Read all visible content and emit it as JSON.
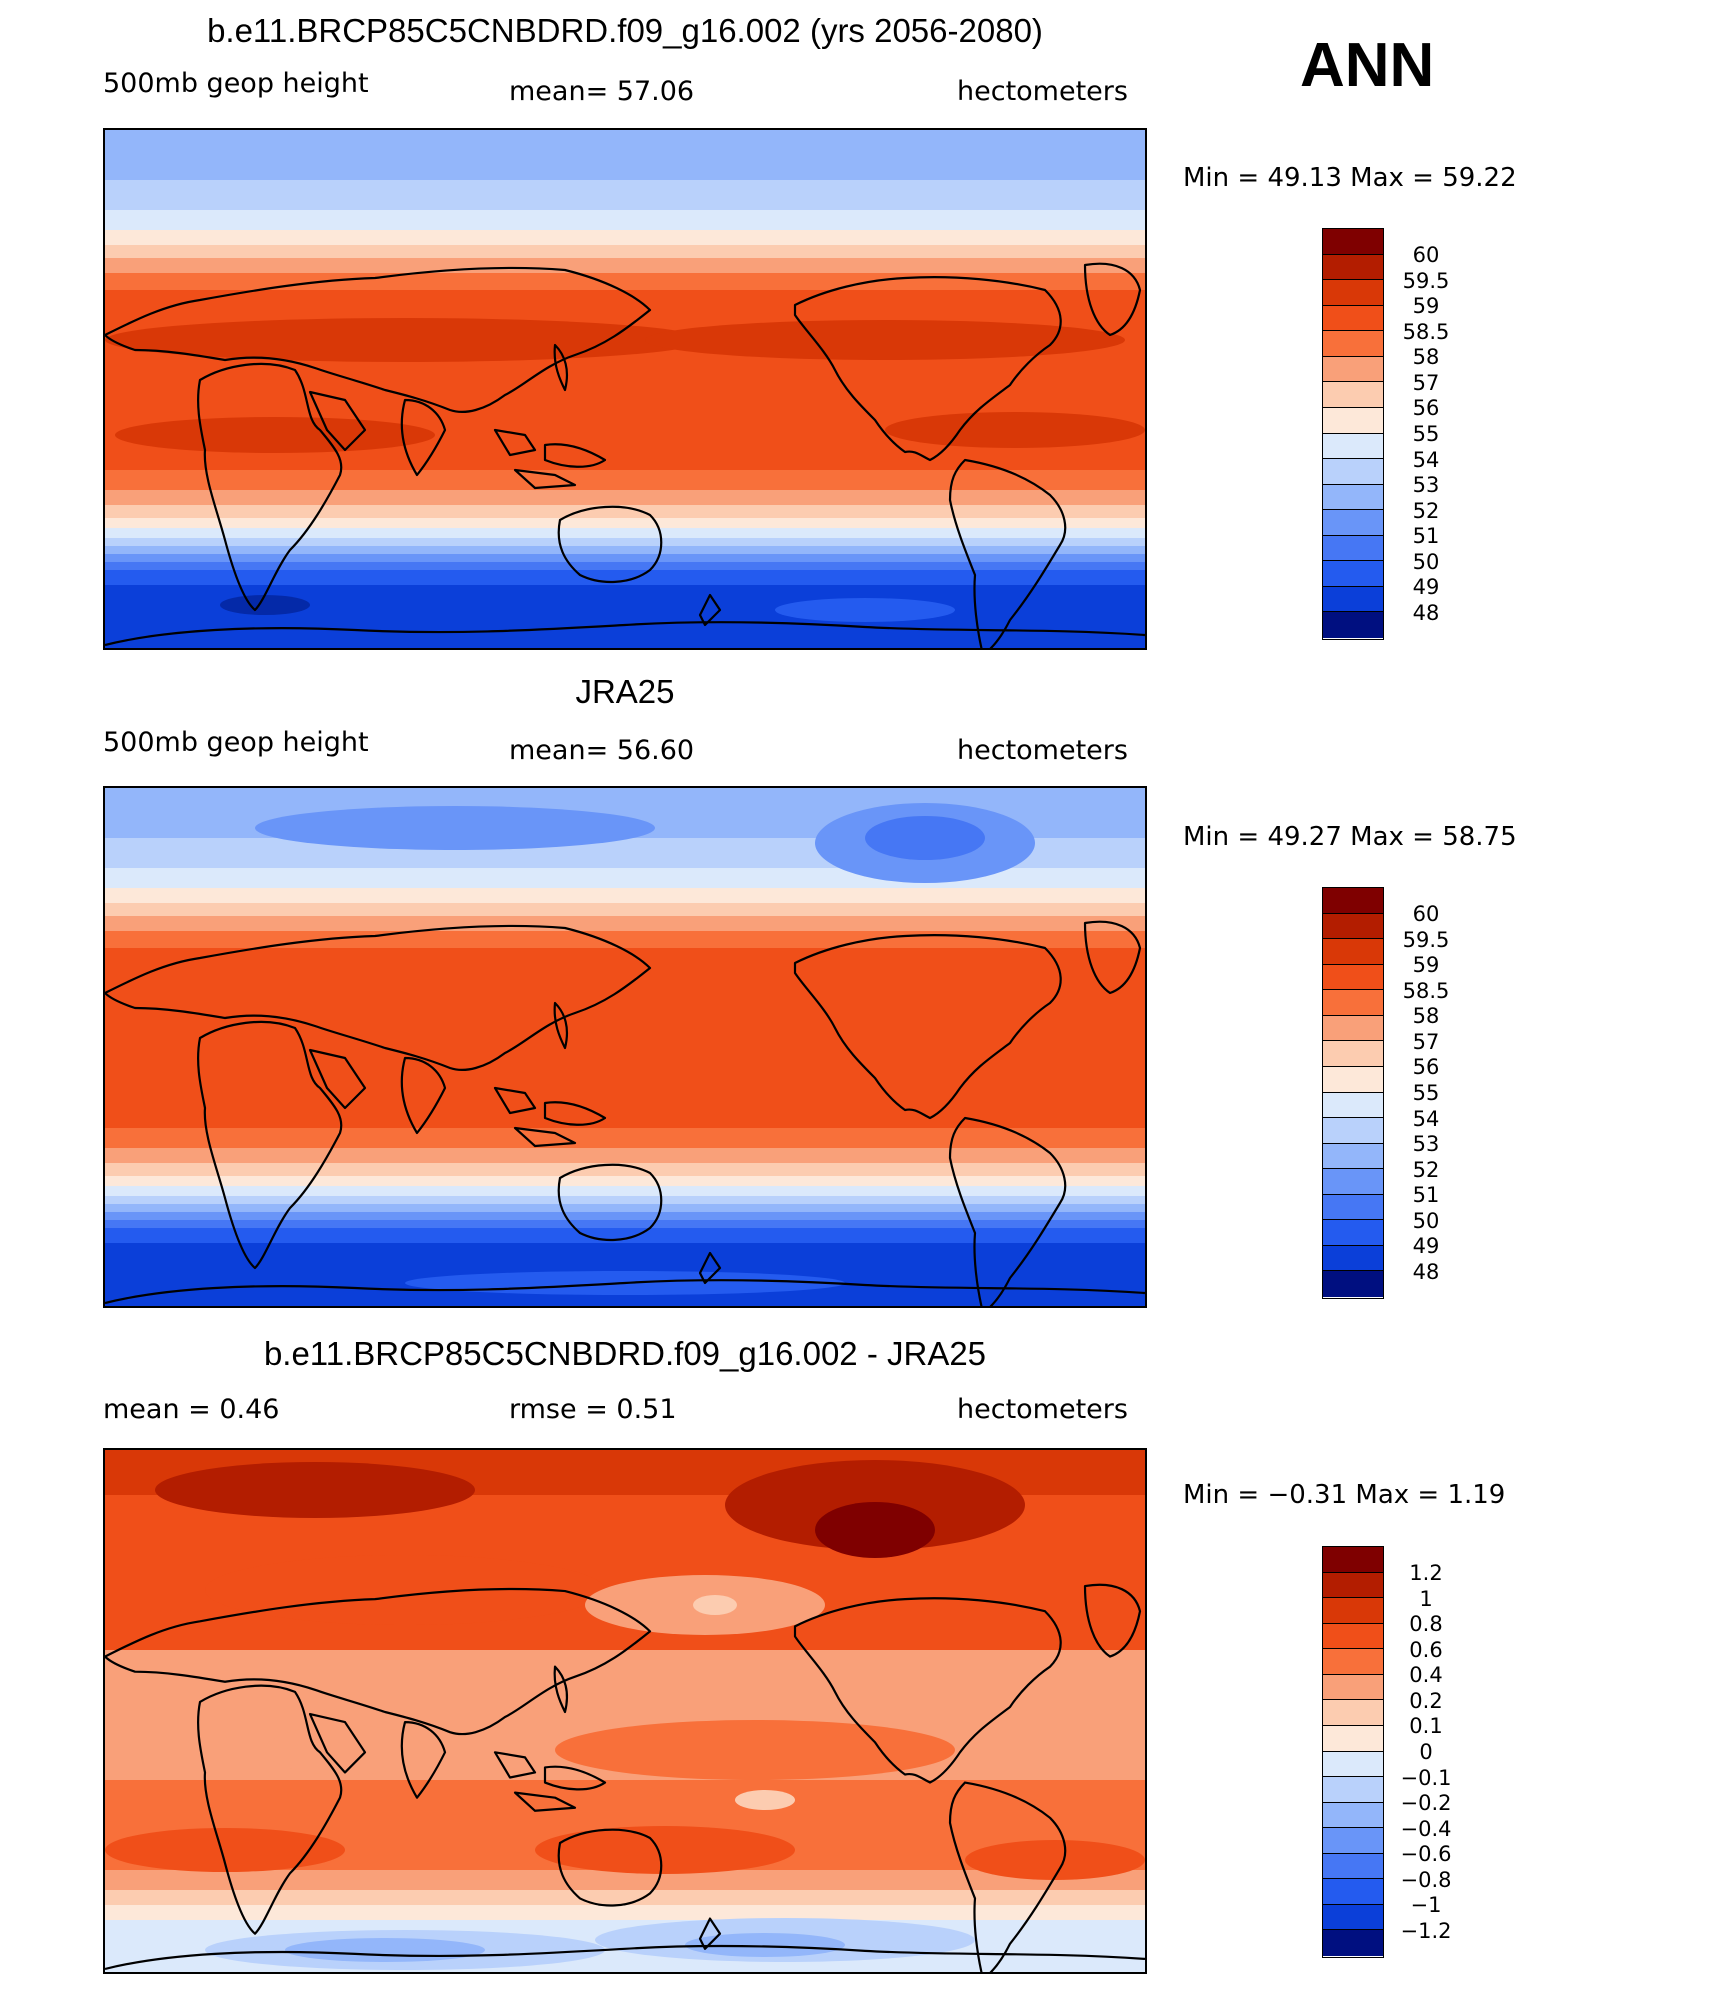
{
  "season": "ANN",
  "palette_warm": [
    "#7f0000",
    "#b31d00",
    "#d93807",
    "#f04f19",
    "#f8703a",
    "#f9a079",
    "#fcccb0",
    "#fde8d9"
  ],
  "palette_cool": [
    "#dbe9fb",
    "#b9d1fb",
    "#93b6fa",
    "#6995f8",
    "#4677f4",
    "#245bef",
    "#0b3fd9",
    "#0429a8",
    "#000f80"
  ],
  "panels": [
    {
      "title": "b.e11.BRCP85C5CNBDRD.f09_g16.002 (yrs 2056-2080)",
      "left_text": "500mb geop height",
      "center_text": "mean=   57.06",
      "right_text": "hectometers",
      "minmax": "Min =   49.13 Max =   59.22",
      "colorbar_labels": [
        "60",
        "59.5",
        "59",
        "58.5",
        "58",
        "57",
        "56",
        "55",
        "54",
        "53",
        "52",
        "51",
        "50",
        "49",
        "48"
      ],
      "colorbar_colors": [
        "#7f0000",
        "#b31d00",
        "#d93807",
        "#f04f19",
        "#f8703a",
        "#f9a079",
        "#fcccb0",
        "#fde8d9",
        "#dbe9fb",
        "#b9d1fb",
        "#93b6fa",
        "#6995f8",
        "#4677f4",
        "#245bef",
        "#0b3fd9",
        "#000f80"
      ]
    },
    {
      "title": "JRA25",
      "left_text": "500mb geop height",
      "center_text": "mean=   56.60",
      "right_text": "hectometers",
      "minmax": "Min =   49.27 Max =   58.75",
      "colorbar_labels": [
        "60",
        "59.5",
        "59",
        "58.5",
        "58",
        "57",
        "56",
        "55",
        "54",
        "53",
        "52",
        "51",
        "50",
        "49",
        "48"
      ],
      "colorbar_colors": [
        "#7f0000",
        "#b31d00",
        "#d93807",
        "#f04f19",
        "#f8703a",
        "#f9a079",
        "#fcccb0",
        "#fde8d9",
        "#dbe9fb",
        "#b9d1fb",
        "#93b6fa",
        "#6995f8",
        "#4677f4",
        "#245bef",
        "#0b3fd9",
        "#000f80"
      ]
    },
    {
      "title": "b.e11.BRCP85C5CNBDRD.f09_g16.002 - JRA25",
      "left_text": "mean =    0.46",
      "center_text": "rmse =    0.51",
      "right_text": "hectometers",
      "minmax": "Min =  −0.31 Max =    1.19",
      "colorbar_labels": [
        "1.2",
        "1",
        "0.8",
        "0.6",
        "0.4",
        "0.2",
        "0.1",
        "0",
        "−0.1",
        "−0.2",
        "−0.4",
        "−0.6",
        "−0.8",
        "−1",
        "−1.2"
      ],
      "colorbar_colors": [
        "#7f0000",
        "#b31d00",
        "#d93807",
        "#f04f19",
        "#f8703a",
        "#f9a079",
        "#fcccb0",
        "#fde8d9",
        "#dbe9fb",
        "#b9d1fb",
        "#93b6fa",
        "#6995f8",
        "#4677f4",
        "#245bef",
        "#0b3fd9",
        "#000f80"
      ]
    }
  ]
}
